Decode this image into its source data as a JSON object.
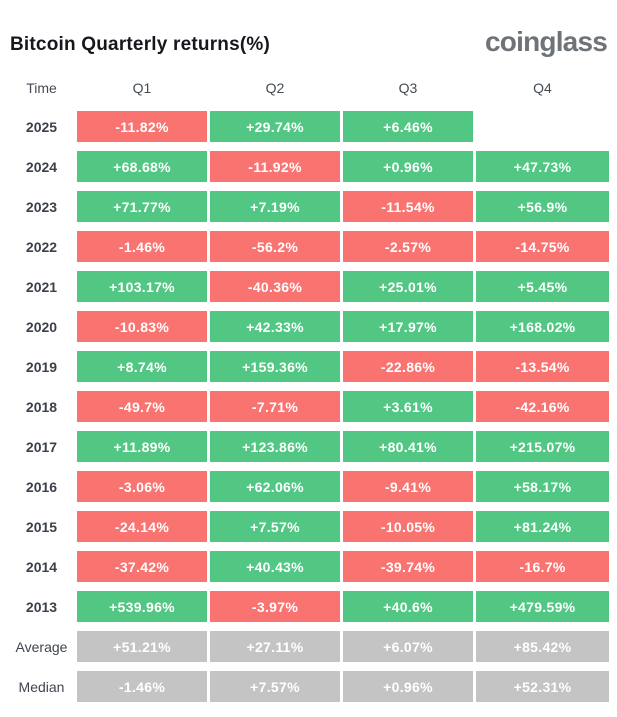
{
  "header": {
    "title": "Bitcoin Quarterly returns(%)",
    "logo_text": "coinglass"
  },
  "colors": {
    "positive": "#52c783",
    "negative": "#f97471",
    "neutral": "#c4c4c4"
  },
  "table": {
    "columns": [
      "Time",
      "Q1",
      "Q2",
      "Q3",
      "Q4"
    ],
    "rows": [
      {
        "label": "2025",
        "kind": "year",
        "cells": [
          {
            "value": "-11.82%",
            "type": "negative"
          },
          {
            "value": "+29.74%",
            "type": "positive"
          },
          {
            "value": "+6.46%",
            "type": "positive"
          },
          {
            "value": "",
            "type": "empty"
          }
        ]
      },
      {
        "label": "2024",
        "kind": "year",
        "cells": [
          {
            "value": "+68.68%",
            "type": "positive"
          },
          {
            "value": "-11.92%",
            "type": "negative"
          },
          {
            "value": "+0.96%",
            "type": "positive"
          },
          {
            "value": "+47.73%",
            "type": "positive"
          }
        ]
      },
      {
        "label": "2023",
        "kind": "year",
        "cells": [
          {
            "value": "+71.77%",
            "type": "positive"
          },
          {
            "value": "+7.19%",
            "type": "positive"
          },
          {
            "value": "-11.54%",
            "type": "negative"
          },
          {
            "value": "+56.9%",
            "type": "positive"
          }
        ]
      },
      {
        "label": "2022",
        "kind": "year",
        "cells": [
          {
            "value": "-1.46%",
            "type": "negative"
          },
          {
            "value": "-56.2%",
            "type": "negative"
          },
          {
            "value": "-2.57%",
            "type": "negative"
          },
          {
            "value": "-14.75%",
            "type": "negative"
          }
        ]
      },
      {
        "label": "2021",
        "kind": "year",
        "cells": [
          {
            "value": "+103.17%",
            "type": "positive"
          },
          {
            "value": "-40.36%",
            "type": "negative"
          },
          {
            "value": "+25.01%",
            "type": "positive"
          },
          {
            "value": "+5.45%",
            "type": "positive"
          }
        ]
      },
      {
        "label": "2020",
        "kind": "year",
        "cells": [
          {
            "value": "-10.83%",
            "type": "negative"
          },
          {
            "value": "+42.33%",
            "type": "positive"
          },
          {
            "value": "+17.97%",
            "type": "positive"
          },
          {
            "value": "+168.02%",
            "type": "positive"
          }
        ]
      },
      {
        "label": "2019",
        "kind": "year",
        "cells": [
          {
            "value": "+8.74%",
            "type": "positive"
          },
          {
            "value": "+159.36%",
            "type": "positive"
          },
          {
            "value": "-22.86%",
            "type": "negative"
          },
          {
            "value": "-13.54%",
            "type": "negative"
          }
        ]
      },
      {
        "label": "2018",
        "kind": "year",
        "cells": [
          {
            "value": "-49.7%",
            "type": "negative"
          },
          {
            "value": "-7.71%",
            "type": "negative"
          },
          {
            "value": "+3.61%",
            "type": "positive"
          },
          {
            "value": "-42.16%",
            "type": "negative"
          }
        ]
      },
      {
        "label": "2017",
        "kind": "year",
        "cells": [
          {
            "value": "+11.89%",
            "type": "positive"
          },
          {
            "value": "+123.86%",
            "type": "positive"
          },
          {
            "value": "+80.41%",
            "type": "positive"
          },
          {
            "value": "+215.07%",
            "type": "positive"
          }
        ]
      },
      {
        "label": "2016",
        "kind": "year",
        "cells": [
          {
            "value": "-3.06%",
            "type": "negative"
          },
          {
            "value": "+62.06%",
            "type": "positive"
          },
          {
            "value": "-9.41%",
            "type": "negative"
          },
          {
            "value": "+58.17%",
            "type": "positive"
          }
        ]
      },
      {
        "label": "2015",
        "kind": "year",
        "cells": [
          {
            "value": "-24.14%",
            "type": "negative"
          },
          {
            "value": "+7.57%",
            "type": "positive"
          },
          {
            "value": "-10.05%",
            "type": "negative"
          },
          {
            "value": "+81.24%",
            "type": "positive"
          }
        ]
      },
      {
        "label": "2014",
        "kind": "year",
        "cells": [
          {
            "value": "-37.42%",
            "type": "negative"
          },
          {
            "value": "+40.43%",
            "type": "positive"
          },
          {
            "value": "-39.74%",
            "type": "negative"
          },
          {
            "value": "-16.7%",
            "type": "negative"
          }
        ]
      },
      {
        "label": "2013",
        "kind": "year",
        "cells": [
          {
            "value": "+539.96%",
            "type": "positive"
          },
          {
            "value": "-3.97%",
            "type": "negative"
          },
          {
            "value": "+40.6%",
            "type": "positive"
          },
          {
            "value": "+479.59%",
            "type": "positive"
          }
        ]
      },
      {
        "label": "Average",
        "kind": "summary",
        "cells": [
          {
            "value": "+51.21%",
            "type": "neutral"
          },
          {
            "value": "+27.11%",
            "type": "neutral"
          },
          {
            "value": "+6.07%",
            "type": "neutral"
          },
          {
            "value": "+85.42%",
            "type": "neutral"
          }
        ]
      },
      {
        "label": "Median",
        "kind": "summary",
        "cells": [
          {
            "value": "-1.46%",
            "type": "neutral"
          },
          {
            "value": "+7.57%",
            "type": "neutral"
          },
          {
            "value": "+0.96%",
            "type": "neutral"
          },
          {
            "value": "+52.31%",
            "type": "neutral"
          }
        ]
      }
    ]
  },
  "chart_data": {
    "type": "heatmap",
    "title": "Bitcoin Quarterly returns(%)",
    "columns": [
      "Q1",
      "Q2",
      "Q3",
      "Q4"
    ],
    "rows": [
      "2025",
      "2024",
      "2023",
      "2022",
      "2021",
      "2020",
      "2019",
      "2018",
      "2017",
      "2016",
      "2015",
      "2014",
      "2013",
      "Average",
      "Median"
    ],
    "values_pct": [
      [
        -11.82,
        29.74,
        6.46,
        null
      ],
      [
        68.68,
        -11.92,
        0.96,
        47.73
      ],
      [
        71.77,
        7.19,
        -11.54,
        56.9
      ],
      [
        -1.46,
        -56.2,
        -2.57,
        -14.75
      ],
      [
        103.17,
        -40.36,
        25.01,
        5.45
      ],
      [
        -10.83,
        42.33,
        17.97,
        168.02
      ],
      [
        8.74,
        159.36,
        -22.86,
        -13.54
      ],
      [
        -49.7,
        -7.71,
        3.61,
        -42.16
      ],
      [
        11.89,
        123.86,
        80.41,
        215.07
      ],
      [
        -3.06,
        62.06,
        -9.41,
        58.17
      ],
      [
        -24.14,
        7.57,
        -10.05,
        81.24
      ],
      [
        -37.42,
        40.43,
        -39.74,
        -16.7
      ],
      [
        539.96,
        -3.97,
        40.6,
        479.59
      ],
      [
        51.21,
        27.11,
        6.07,
        85.42
      ],
      [
        -1.46,
        7.57,
        0.96,
        52.31
      ]
    ],
    "legend": "cell color: green = positive return, red = negative return, gray = summary rows (Average/Median)",
    "layout": {
      "grid": false,
      "legend_position": "none"
    }
  }
}
